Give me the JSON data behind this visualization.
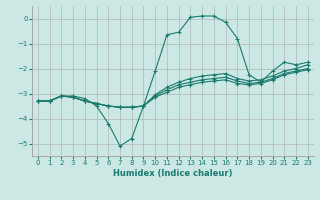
{
  "xlabel": "Humidex (Indice chaleur)",
  "ylabel": "",
  "bg_color": "#cce8e4",
  "grid_color": "#aaaaaa",
  "line_color": "#1a7a6e",
  "xlim": [
    -0.5,
    23.5
  ],
  "ylim": [
    -5.5,
    0.5
  ],
  "xticks": [
    0,
    1,
    2,
    3,
    4,
    5,
    6,
    7,
    8,
    9,
    10,
    11,
    12,
    13,
    14,
    15,
    16,
    17,
    18,
    19,
    20,
    21,
    22,
    23
  ],
  "yticks": [
    0,
    -1,
    -2,
    -3,
    -4,
    -5
  ],
  "line1_x": [
    0,
    1,
    2,
    3,
    4,
    5,
    6,
    7,
    8,
    9,
    10,
    11,
    12,
    13,
    14,
    15,
    16,
    17,
    18,
    19,
    20,
    21,
    22,
    23
  ],
  "line1_y": [
    -3.3,
    -3.3,
    -3.1,
    -3.1,
    -3.2,
    -3.5,
    -4.2,
    -5.1,
    -4.8,
    -3.5,
    -2.1,
    -0.65,
    -0.55,
    0.05,
    0.1,
    0.1,
    -0.15,
    -0.8,
    -2.25,
    -2.55,
    -2.1,
    -1.75,
    -1.85,
    -1.75
  ],
  "line2_x": [
    0,
    1,
    2,
    3,
    4,
    5,
    6,
    7,
    8,
    9,
    10,
    11,
    12,
    13,
    14,
    15,
    16,
    17,
    18,
    19,
    20,
    21,
    22,
    23
  ],
  "line2_y": [
    -3.3,
    -3.3,
    -3.1,
    -3.15,
    -3.3,
    -3.4,
    -3.5,
    -3.55,
    -3.55,
    -3.5,
    -3.05,
    -2.75,
    -2.55,
    -2.4,
    -2.3,
    -2.25,
    -2.2,
    -2.4,
    -2.5,
    -2.45,
    -2.3,
    -2.1,
    -2.0,
    -1.85
  ],
  "line3_x": [
    0,
    1,
    2,
    3,
    4,
    5,
    6,
    7,
    8,
    9,
    10,
    11,
    12,
    13,
    14,
    15,
    16,
    17,
    18,
    19,
    20,
    21,
    22,
    23
  ],
  "line3_y": [
    -3.3,
    -3.3,
    -3.1,
    -3.15,
    -3.3,
    -3.4,
    -3.5,
    -3.55,
    -3.55,
    -3.5,
    -3.1,
    -2.85,
    -2.65,
    -2.55,
    -2.45,
    -2.4,
    -2.35,
    -2.5,
    -2.6,
    -2.55,
    -2.4,
    -2.2,
    -2.1,
    -2.0
  ],
  "line4_x": [
    0,
    1,
    2,
    3,
    4,
    5,
    6,
    7,
    8,
    9,
    10,
    11,
    12,
    13,
    14,
    15,
    16,
    17,
    18,
    19,
    20,
    21,
    22,
    23
  ],
  "line4_y": [
    -3.3,
    -3.3,
    -3.1,
    -3.15,
    -3.3,
    -3.4,
    -3.5,
    -3.55,
    -3.55,
    -3.5,
    -3.15,
    -2.95,
    -2.75,
    -2.65,
    -2.55,
    -2.5,
    -2.45,
    -2.6,
    -2.65,
    -2.6,
    -2.45,
    -2.25,
    -2.15,
    -2.05
  ]
}
